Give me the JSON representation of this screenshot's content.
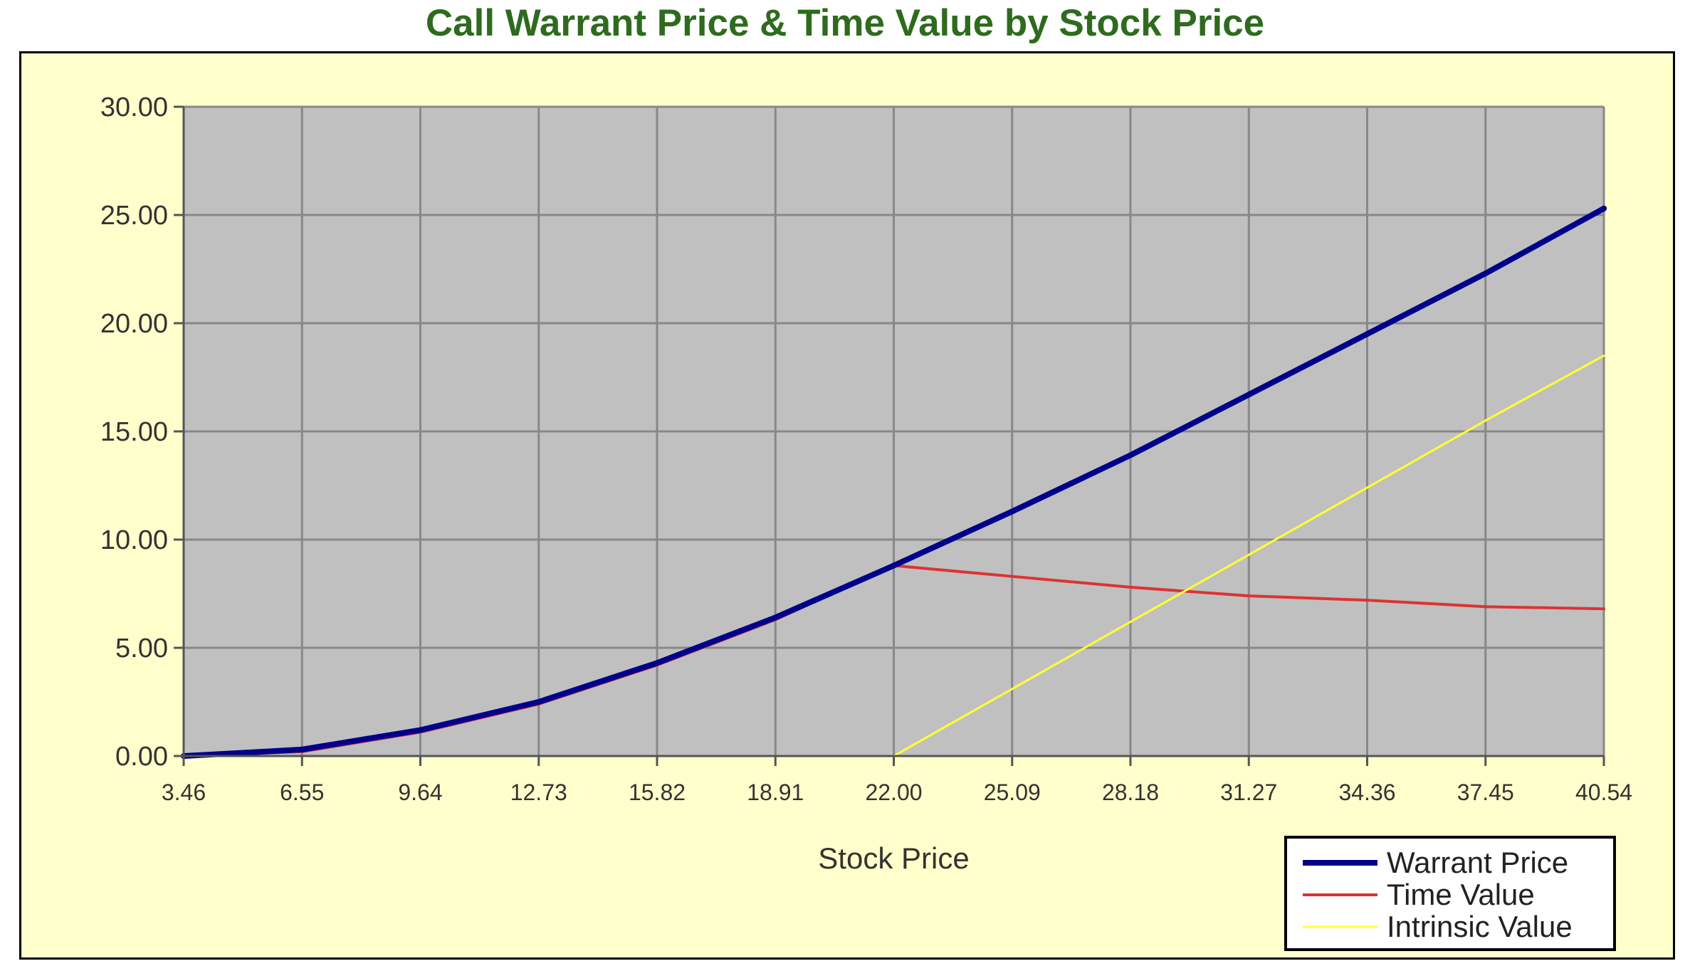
{
  "chart_data": {
    "type": "line",
    "title": "Call Warrant Price & Time Value by Stock Price",
    "xlabel": "Stock Price",
    "ylabel": "",
    "ylim": [
      0,
      30
    ],
    "y_ticks": [
      "0.00",
      "5.00",
      "10.00",
      "15.00",
      "20.00",
      "25.00",
      "30.00"
    ],
    "x_ticks": [
      "3.46",
      "6.55",
      "9.64",
      "12.73",
      "15.82",
      "18.91",
      "22.00",
      "25.09",
      "28.18",
      "31.27",
      "34.36",
      "37.45",
      "40.54"
    ],
    "x": [
      3.46,
      6.55,
      9.64,
      12.73,
      15.82,
      18.91,
      22.0,
      25.09,
      28.18,
      31.27,
      34.36,
      37.45,
      40.54
    ],
    "grid": true,
    "legend_position": "bottom-right",
    "plot_background": "#c0c0c0",
    "chart_background": "#ffffcc",
    "title_color": "#2e6b1e",
    "series": [
      {
        "name": "Warrant Price",
        "color": "#00008b",
        "values": [
          0.0,
          0.3,
          1.2,
          2.5,
          4.3,
          6.4,
          8.8,
          11.3,
          13.9,
          16.7,
          19.5,
          22.3,
          25.3
        ]
      },
      {
        "name": "Time Value",
        "color": "#dd3333",
        "values": [
          0.0,
          0.2,
          1.1,
          2.4,
          4.2,
          6.3,
          8.8,
          8.3,
          7.8,
          7.4,
          7.2,
          6.9,
          6.8
        ]
      },
      {
        "name": "Intrinsic Value",
        "color": "#ffff33",
        "values": [
          null,
          null,
          null,
          null,
          null,
          null,
          0.0,
          3.1,
          6.2,
          9.3,
          12.4,
          15.5,
          18.5
        ]
      }
    ]
  }
}
